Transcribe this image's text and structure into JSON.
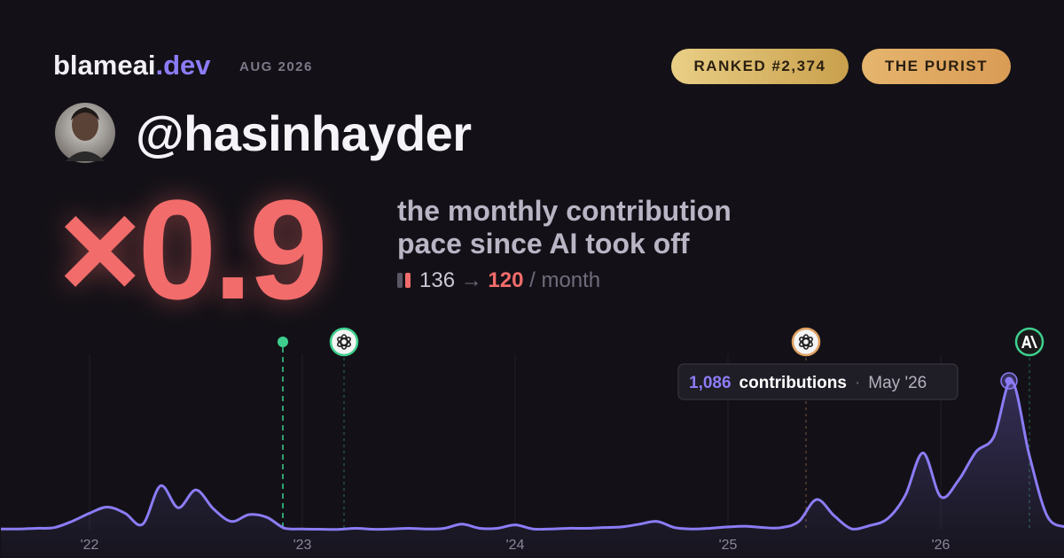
{
  "header": {
    "brand": "blameai",
    "brand_tld": ".dev",
    "period": "AUG 2026",
    "badges": [
      "RANKED #2,374",
      "THE PURIST"
    ],
    "username": "@hasinhayder"
  },
  "stat": {
    "multiplier": "×0.9",
    "description": [
      "the monthly contribution",
      "pace since AI took off"
    ],
    "before": 136,
    "arrow": "→",
    "after": 120,
    "unit": "/ month"
  },
  "chart_data": {
    "type": "line",
    "color": "#8b7cf6",
    "categories": [
      null,
      null,
      null,
      null,
      null,
      "'22",
      null,
      null,
      null,
      null,
      null,
      null,
      null,
      null,
      null,
      null,
      null,
      "'23",
      null,
      null,
      null,
      null,
      null,
      null,
      null,
      null,
      null,
      null,
      null,
      "'24",
      null,
      null,
      null,
      null,
      null,
      null,
      null,
      null,
      null,
      null,
      null,
      "'25",
      null,
      null,
      null,
      null,
      null,
      null,
      null,
      null,
      null,
      null,
      null,
      "'26",
      null,
      null,
      null,
      null,
      null,
      null,
      null
    ],
    "values": [
      5,
      5,
      10,
      15,
      60,
      120,
      165,
      120,
      40,
      320,
      160,
      290,
      150,
      60,
      110,
      90,
      10,
      5,
      3,
      2,
      10,
      3,
      5,
      10,
      5,
      10,
      40,
      10,
      10,
      35,
      5,
      5,
      10,
      10,
      15,
      20,
      40,
      60,
      15,
      5,
      10,
      20,
      25,
      15,
      15,
      60,
      220,
      100,
      5,
      30,
      80,
      250,
      560,
      240,
      360,
      570,
      680,
      1086,
      540,
      100,
      20
    ],
    "tooltip": {
      "value": "1,086",
      "text": "contributions",
      "separator": "·",
      "date": "May '26"
    }
  }
}
